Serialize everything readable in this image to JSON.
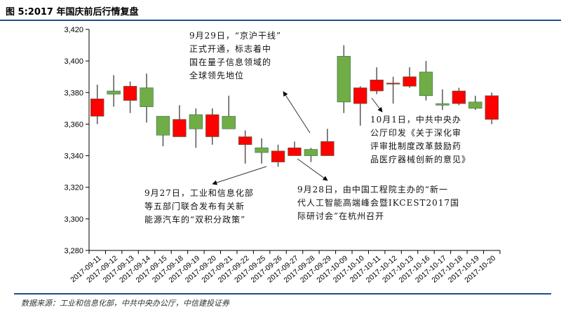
{
  "header": {
    "title": "图 5:2017 年国庆前后行情复盘"
  },
  "footer": {
    "source": "数据来源：工业和信息化部，中共中央办公厅，中信建投证券"
  },
  "colors": {
    "up": "#ff0000",
    "down": "#70ad47",
    "rule": "#1f4e8c"
  },
  "chart_data": {
    "type": "candlestick",
    "title": "2017 年国庆前后行情复盘",
    "ylim": [
      3280,
      3420
    ],
    "yticks": [
      3280,
      3300,
      3320,
      3340,
      3360,
      3380,
      3400,
      3420
    ],
    "ytick_labels": [
      "3,280",
      "3,300",
      "3,320",
      "3,340",
      "3,360",
      "3,380",
      "3,400",
      "3,420"
    ],
    "grid": false,
    "categories": [
      "2017-09-11",
      "2017-09-12",
      "2017-09-13",
      "2017-09-14",
      "2017-09-15",
      "2017-09-18",
      "2017-09-19",
      "2017-09-20",
      "2017-09-21",
      "2017-09-22",
      "2017-09-25",
      "2017-09-26",
      "2017-09-27",
      "2017-09-28",
      "2017-09-29",
      "2017-10-09",
      "2017-10-10",
      "2017-10-11",
      "2017-10-12",
      "2017-10-13",
      "2017-10-16",
      "2017-10-17",
      "2017-10-18",
      "2017-10-19",
      "2017-10-20"
    ],
    "ohlc": [
      [
        3365,
        3385,
        3360,
        3376
      ],
      [
        3381,
        3391,
        3371,
        3379
      ],
      [
        3375,
        3387,
        3367,
        3384
      ],
      [
        3383,
        3392,
        3361,
        3371
      ],
      [
        3365,
        3365,
        3346,
        3353
      ],
      [
        3352,
        3372,
        3352,
        3363
      ],
      [
        3366,
        3370,
        3345,
        3357
      ],
      [
        3352,
        3370,
        3347,
        3366
      ],
      [
        3365,
        3378,
        3357,
        3357
      ],
      [
        3347,
        3356,
        3335,
        3352
      ],
      [
        3345,
        3351,
        3335,
        3342
      ],
      [
        3336,
        3347,
        3333,
        3343
      ],
      [
        3340,
        3349,
        3340,
        3345
      ],
      [
        3344,
        3345,
        3336,
        3340
      ],
      [
        3340,
        3357,
        3340,
        3349
      ],
      [
        3403,
        3410,
        3367,
        3374
      ],
      [
        3373,
        3384,
        3359,
        3383
      ],
      [
        3381,
        3396,
        3379,
        3388
      ],
      [
        3385.5,
        3390,
        3373,
        3386
      ],
      [
        3384,
        3396,
        3383,
        3390
      ],
      [
        3393,
        3400,
        3375,
        3378
      ],
      [
        3373,
        3382,
        3369,
        3372
      ],
      [
        3373,
        3383,
        3372,
        3381
      ],
      [
        3374,
        3378,
        3369,
        3370
      ],
      [
        3363,
        3380,
        3360,
        3378
      ]
    ],
    "annotations": [
      {
        "text": [
          "9月29日，“京沪干线”",
          "正式开通，标志着中",
          "国在量子信息领域的",
          "全球领先地位"
        ]
      },
      {
        "text": [
          "10月1日，中共中央办",
          "公厅印发《关于深化审",
          "评审批制度改革鼓励药",
          "品医疗器械创新的意见》"
        ]
      },
      {
        "text": [
          "9月27日，工业和信息化部",
          "等五部门联合发布有关新",
          "能源汽车的“双积分政策”"
        ]
      },
      {
        "text": [
          "9月28日，由中国工程院主办的“新一",
          "代人工智能高端峰会暨IKCEST2017国",
          "际研讨会”在杭州召开"
        ]
      }
    ]
  }
}
